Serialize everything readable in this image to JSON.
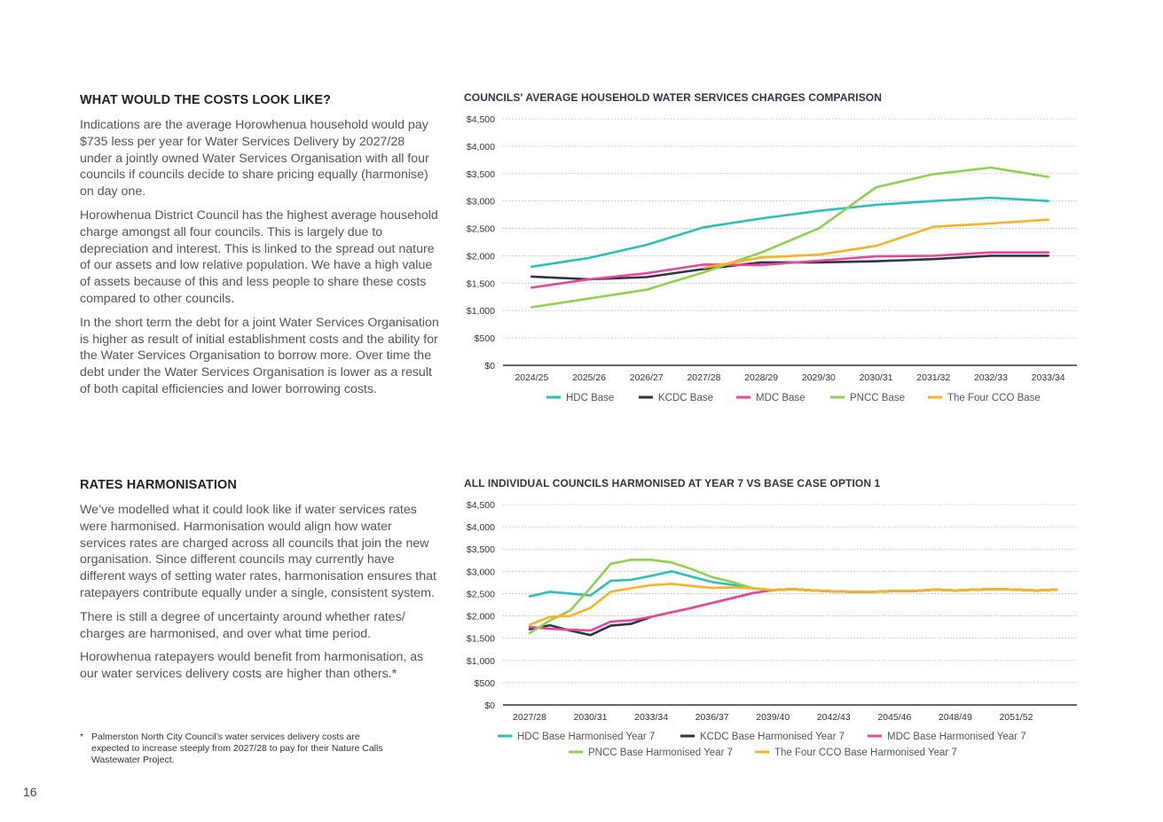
{
  "section1": {
    "heading": "WHAT WOULD THE COSTS LOOK LIKE?",
    "paragraphs": [
      "Indications are the average Horowhenua household would pay $735 less per year for Water Services Delivery by 2027/28 under a jointly owned Water Services Organisation with all four councils if councils decide to share pricing equally (harmonise) on day one.",
      "Horowhenua District Council has the highest average household charge amongst all four councils. This is largely due to depreciation and interest. This is linked to the spread out nature of our assets and low relative population.  We have a high value of assets because of this and less people to share these costs compared to other councils.",
      "In the short term the debt for a joint Water Services Organisation is higher as result of initial establishment costs and the ability for the Water Services Organisation to borrow more. Over time the debt under the Water Services Organisation is lower as a result of both capital efficiencies and lower borrowing costs."
    ]
  },
  "section2": {
    "heading": "RATES HARMONISATION",
    "paragraphs": [
      "We’ve modelled what it could look like if water services rates were harmonised. Harmonisation would align how water services rates are charged across all councils that join the new organisation. Since different councils may currently have different ways of setting water rates, harmonisation ensures that ratepayers contribute equally under a single, consistent system.",
      "There is still a degree of uncertainty around whether rates/ charges are harmonised, and over what time period.",
      "Horowhenua ratepayers would benefit from harmonisation, as our water services delivery costs are higher than others.*"
    ]
  },
  "footnote": {
    "marker": "*",
    "text": "Palmerston North City Council’s water services delivery costs are expected to increase steeply from 2027/28 to pay for their Nature Calls Wastewater Project."
  },
  "page_number": "16",
  "chart_data": [
    {
      "type": "line",
      "title": "COUNCILS' AVERAGE HOUSEHOLD WATER SERVICES CHARGES COMPARISON",
      "categories": [
        "2024/25",
        "2025/26",
        "2026/27",
        "2027/28",
        "2028/29",
        "2029/30",
        "2030/31",
        "2031/32",
        "2032/33",
        "2033/34"
      ],
      "y_ticks": [
        "$0",
        "$500",
        "$1,000",
        "$1,500",
        "$2,000",
        "$2,500",
        "$3,000",
        "$3,500",
        "$4,000",
        "$4,500"
      ],
      "ylim": [
        0,
        4500
      ],
      "grid": true,
      "legend_position": "bottom",
      "series": [
        {
          "name": "HDC Base",
          "color": "#2bbfb6",
          "values": [
            1800,
            1960,
            2200,
            2520,
            2680,
            2820,
            2930,
            3000,
            3060,
            3000
          ]
        },
        {
          "name": "KCDC Base",
          "color": "#2b3646",
          "values": [
            1620,
            1570,
            1610,
            1760,
            1880,
            1880,
            1900,
            1940,
            2000,
            2000
          ]
        },
        {
          "name": "MDC Base",
          "color": "#e8489a",
          "values": [
            1420,
            1570,
            1680,
            1840,
            1830,
            1910,
            1990,
            2000,
            2060,
            2060
          ]
        },
        {
          "name": "PNCC Base",
          "color": "#8fd14f",
          "values": [
            1060,
            1220,
            1380,
            1700,
            2060,
            2500,
            3250,
            3490,
            3610,
            3440
          ]
        },
        {
          "name": "The Four CCO Base",
          "color": "#f5b325",
          "values": [
            null,
            null,
            null,
            1780,
            1970,
            2020,
            2180,
            2530,
            2590,
            2660
          ]
        }
      ]
    },
    {
      "type": "line",
      "title": "ALL INDIVIDUAL COUNCILS HARMONISED AT YEAR 7 VS BASE CASE OPTION 1",
      "x_start": 2027,
      "x_end": 2054,
      "tick_labels": [
        "2027/28",
        "2030/31",
        "2033/34",
        "2036/37",
        "2039/40",
        "2042/43",
        "2045/46",
        "2048/49",
        "2051/52"
      ],
      "tick_years": [
        2027,
        2030,
        2033,
        2036,
        2039,
        2042,
        2045,
        2048,
        2051
      ],
      "y_ticks": [
        "$0",
        "$500",
        "$1,000",
        "$1,500",
        "$2,000",
        "$2,500",
        "$3,000",
        "$3,500",
        "$4,000",
        "$4,500"
      ],
      "ylim": [
        0,
        4500
      ],
      "grid": true,
      "legend_position": "bottom",
      "series": [
        {
          "name": "HDC Base Harmonised Year 7",
          "color": "#2bbfb6",
          "values": [
            2440,
            2540,
            2500,
            2460,
            2790,
            2810,
            2900,
            3000,
            2880,
            2760,
            2700,
            2620,
            2580,
            2600,
            2570,
            2550,
            2540,
            2540,
            2560,
            2560,
            2590,
            2570,
            2590,
            2600,
            2590,
            2570,
            2590
          ]
        },
        {
          "name": "KCDC Base Harmonised Year 7",
          "color": "#2b3646",
          "values": [
            1700,
            1790,
            1670,
            1570,
            1780,
            1820,
            1980,
            2080,
            2180,
            2290,
            2400,
            2510,
            2580,
            2600,
            2570,
            2550,
            2540,
            2540,
            2560,
            2560,
            2590,
            2570,
            2590,
            2600,
            2590,
            2570,
            2590
          ]
        },
        {
          "name": "MDC Base Harmonised Year 7",
          "color": "#e8489a",
          "values": [
            1750,
            1710,
            1690,
            1670,
            1870,
            1900,
            1980,
            2080,
            2180,
            2290,
            2400,
            2510,
            2580,
            2600,
            2570,
            2550,
            2540,
            2540,
            2560,
            2560,
            2590,
            2570,
            2590,
            2600,
            2590,
            2570,
            2590
          ]
        },
        {
          "name": "PNCC Base Harmonised Year 7",
          "color": "#8fd14f",
          "values": [
            1610,
            1900,
            2120,
            2630,
            3170,
            3260,
            3260,
            3200,
            3050,
            2870,
            2760,
            2620,
            2580,
            2600,
            2570,
            2550,
            2540,
            2540,
            2560,
            2560,
            2590,
            2570,
            2590,
            2600,
            2590,
            2570,
            2590
          ]
        },
        {
          "name": "The Four CCO Base Harmonised Year 7",
          "color": "#f5b325",
          "values": [
            1800,
            1980,
            2000,
            2180,
            2540,
            2620,
            2690,
            2720,
            2670,
            2630,
            2640,
            2620,
            2580,
            2600,
            2570,
            2550,
            2540,
            2540,
            2560,
            2560,
            2590,
            2570,
            2590,
            2600,
            2590,
            2570,
            2590
          ]
        }
      ]
    }
  ]
}
